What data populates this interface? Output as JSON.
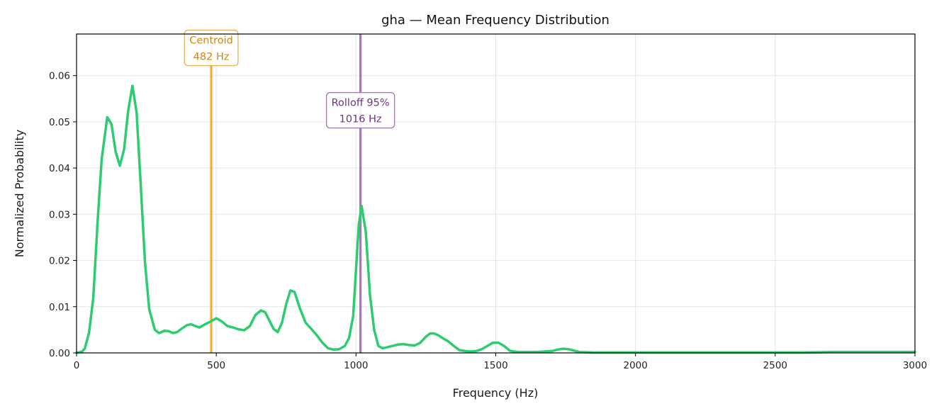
{
  "chart_data": {
    "type": "line",
    "title": "gha  —  Mean Frequency Distribution",
    "xlabel": "Frequency (Hz)",
    "ylabel": "Normalized Probability",
    "xlim": [
      0,
      3000
    ],
    "ylim": [
      0,
      0.069
    ],
    "xticks": [
      0,
      500,
      1000,
      1500,
      2000,
      2500,
      3000
    ],
    "yticks": [
      0.0,
      0.01,
      0.02,
      0.03,
      0.04,
      0.05,
      0.06
    ],
    "xtick_labels": [
      "0",
      "500",
      "1000",
      "1500",
      "2000",
      "2500",
      "3000"
    ],
    "ytick_labels": [
      "0.00",
      "0.01",
      "0.02",
      "0.03",
      "0.04",
      "0.05",
      "0.06"
    ],
    "grid": true,
    "series": [
      {
        "color": "#2ecc71",
        "x": [
          0,
          20,
          30,
          45,
          60,
          75,
          90,
          110,
          125,
          140,
          155,
          170,
          185,
          200,
          215,
          230,
          245,
          260,
          280,
          295,
          315,
          330,
          345,
          360,
          375,
          395,
          410,
          425,
          440,
          460,
          480,
          500,
          520,
          540,
          560,
          580,
          600,
          620,
          640,
          660,
          675,
          690,
          705,
          720,
          735,
          750,
          765,
          780,
          800,
          820,
          840,
          860,
          880,
          900,
          920,
          940,
          960,
          975,
          990,
          1000,
          1010,
          1020,
          1035,
          1050,
          1065,
          1080,
          1095,
          1110,
          1130,
          1150,
          1170,
          1190,
          1210,
          1230,
          1250,
          1265,
          1280,
          1295,
          1310,
          1330,
          1350,
          1370,
          1390,
          1410,
          1430,
          1450,
          1470,
          1490,
          1510,
          1530,
          1550,
          1565,
          1580,
          1600,
          1650,
          1700,
          1720,
          1740,
          1760,
          1780,
          1800,
          1850,
          1900,
          2000,
          2200,
          2400,
          2600,
          2700,
          2800,
          2900,
          3000
        ],
        "y": [
          0.0,
          0.0003,
          0.001,
          0.0045,
          0.012,
          0.028,
          0.042,
          0.051,
          0.0495,
          0.0435,
          0.0405,
          0.044,
          0.0525,
          0.0578,
          0.052,
          0.036,
          0.0195,
          0.0095,
          0.005,
          0.0043,
          0.0048,
          0.0047,
          0.0043,
          0.0045,
          0.0052,
          0.006,
          0.0062,
          0.0058,
          0.0055,
          0.0062,
          0.0068,
          0.0075,
          0.0068,
          0.0058,
          0.0055,
          0.0051,
          0.0049,
          0.0058,
          0.0082,
          0.0092,
          0.0088,
          0.007,
          0.0052,
          0.0045,
          0.0065,
          0.0105,
          0.0135,
          0.0132,
          0.0095,
          0.0065,
          0.0052,
          0.0038,
          0.0022,
          0.001,
          0.0007,
          0.0008,
          0.0015,
          0.0032,
          0.008,
          0.018,
          0.0278,
          0.0318,
          0.0262,
          0.0125,
          0.005,
          0.0015,
          0.001,
          0.0012,
          0.0015,
          0.0018,
          0.0019,
          0.0017,
          0.0016,
          0.0022,
          0.0035,
          0.0042,
          0.0042,
          0.0038,
          0.0032,
          0.0025,
          0.0015,
          0.0006,
          0.0004,
          0.0003,
          0.0004,
          0.0008,
          0.0015,
          0.0022,
          0.0022,
          0.0015,
          0.0005,
          0.0003,
          0.0002,
          0.0002,
          0.0002,
          0.0004,
          0.0007,
          0.0009,
          0.0008,
          0.0005,
          0.0002,
          0.0001,
          0.0001,
          0.0001,
          0.0001,
          0.0001,
          0.0001,
          0.0002,
          0.0002,
          0.0002,
          0.0002
        ]
      }
    ],
    "markers": [
      {
        "x": 482,
        "color": "#f39c12",
        "label_line1": "Centroid",
        "label_line2": "482 Hz",
        "text_color": "#d4860b",
        "border_color": "#e8b05a",
        "label_y": 0.066
      },
      {
        "x": 1016,
        "color": "#9b59b6",
        "label_line1": "Rolloff 95%",
        "label_line2": "1016 Hz",
        "text_color": "#6c3483",
        "border_color": "#9b7ab0",
        "label_y": 0.0525
      }
    ]
  }
}
